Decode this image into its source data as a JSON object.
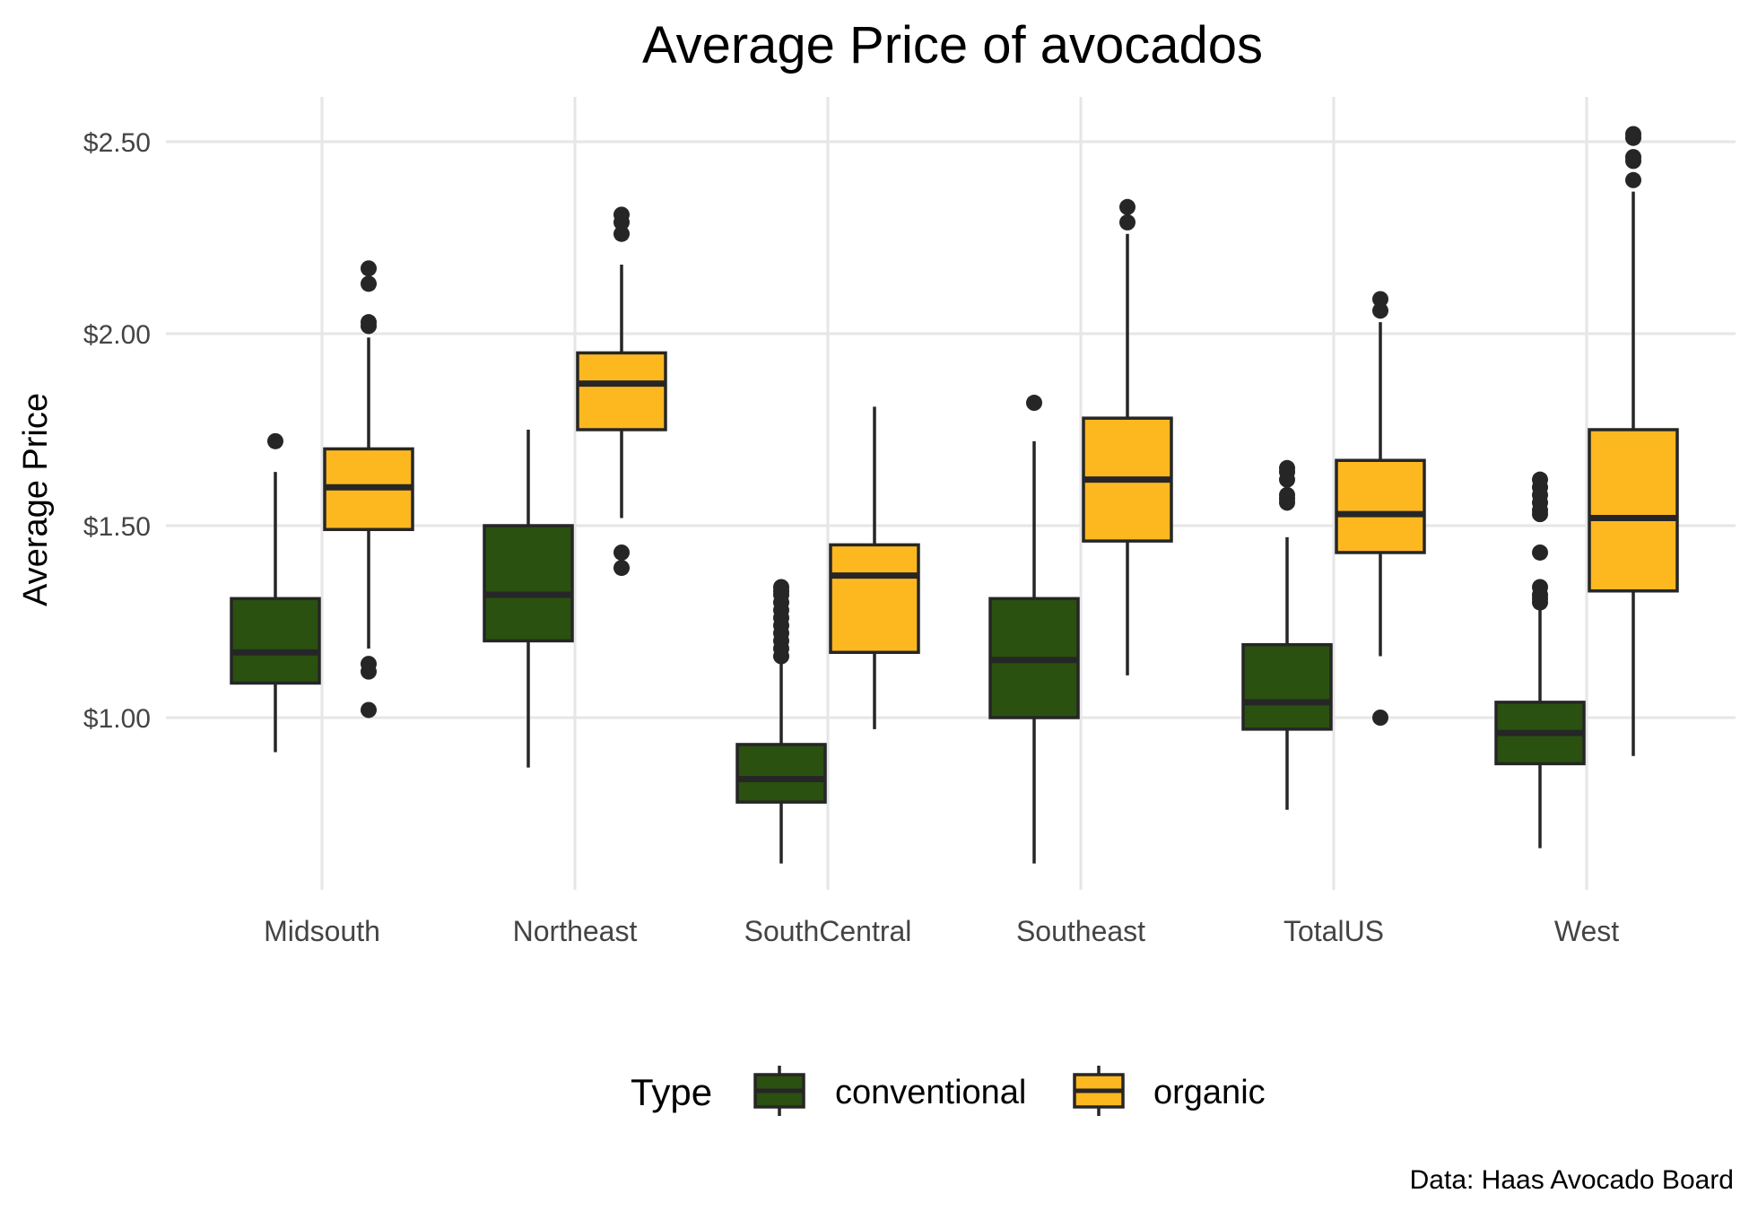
{
  "chart_data": {
    "type": "boxplot",
    "title": "Average Price of avocados",
    "xlabel": "",
    "ylabel": "Average Price",
    "caption": "Data: Haas Avocado Board",
    "y_tick_labels": [
      "$1.00",
      "$1.50",
      "$2.00",
      "$2.50"
    ],
    "y_ticks": [
      1.0,
      1.5,
      2.0,
      2.5
    ],
    "ylim": [
      0.55,
      2.62
    ],
    "grid": true,
    "legend": {
      "title": "Type",
      "position": "bottom"
    },
    "categories": [
      "Midsouth",
      "Northeast",
      "SouthCentral",
      "Southeast",
      "TotalUS",
      "West"
    ],
    "series": [
      {
        "name": "conventional",
        "color": "#2a510f",
        "boxes": [
          {
            "whisker_low": 0.91,
            "q1": 1.09,
            "median": 1.17,
            "q3": 1.31,
            "whisker_high": 1.64,
            "outliers": [
              1.72
            ]
          },
          {
            "whisker_low": 0.87,
            "q1": 1.2,
            "median": 1.32,
            "q3": 1.5,
            "whisker_high": 1.75,
            "outliers": []
          },
          {
            "whisker_low": 0.62,
            "q1": 0.78,
            "median": 0.84,
            "q3": 0.93,
            "whisker_high": 1.15,
            "outliers": [
              1.16,
              1.18,
              1.2,
              1.22,
              1.24,
              1.26,
              1.28,
              1.3,
              1.32,
              1.33,
              1.34
            ]
          },
          {
            "whisker_low": 0.62,
            "q1": 1.0,
            "median": 1.15,
            "q3": 1.31,
            "whisker_high": 1.72,
            "outliers": [
              1.82
            ]
          },
          {
            "whisker_low": 0.76,
            "q1": 0.97,
            "median": 1.04,
            "q3": 1.19,
            "whisker_high": 1.47,
            "outliers": [
              1.56,
              1.57,
              1.58,
              1.62,
              1.64,
              1.65
            ]
          },
          {
            "whisker_low": 0.66,
            "q1": 0.88,
            "median": 0.96,
            "q3": 1.04,
            "whisker_high": 1.29,
            "outliers": [
              1.3,
              1.31,
              1.32,
              1.34,
              1.43,
              1.53,
              1.54,
              1.56,
              1.58,
              1.6,
              1.62
            ]
          }
        ]
      },
      {
        "name": "organic",
        "color": "#fdb820",
        "boxes": [
          {
            "whisker_low": 1.18,
            "q1": 1.49,
            "median": 1.6,
            "q3": 1.7,
            "whisker_high": 1.99,
            "outliers": [
              1.02,
              1.12,
              1.14,
              2.02,
              2.03,
              2.13,
              2.17
            ]
          },
          {
            "whisker_low": 1.52,
            "q1": 1.75,
            "median": 1.87,
            "q3": 1.95,
            "whisker_high": 2.18,
            "outliers": [
              1.39,
              1.43,
              2.26,
              2.29,
              2.31
            ]
          },
          {
            "whisker_low": 0.97,
            "q1": 1.17,
            "median": 1.37,
            "q3": 1.45,
            "whisker_high": 1.81,
            "outliers": []
          },
          {
            "whisker_low": 1.11,
            "q1": 1.46,
            "median": 1.62,
            "q3": 1.78,
            "whisker_high": 2.26,
            "outliers": [
              2.29,
              2.33
            ]
          },
          {
            "whisker_low": 1.16,
            "q1": 1.43,
            "median": 1.53,
            "q3": 1.67,
            "whisker_high": 2.03,
            "outliers": [
              1.0,
              2.06,
              2.09
            ]
          },
          {
            "whisker_low": 0.9,
            "q1": 1.33,
            "median": 1.52,
            "q3": 1.75,
            "whisker_high": 2.37,
            "outliers": [
              2.4,
              2.45,
              2.46,
              2.51,
              2.52
            ]
          }
        ]
      }
    ]
  }
}
